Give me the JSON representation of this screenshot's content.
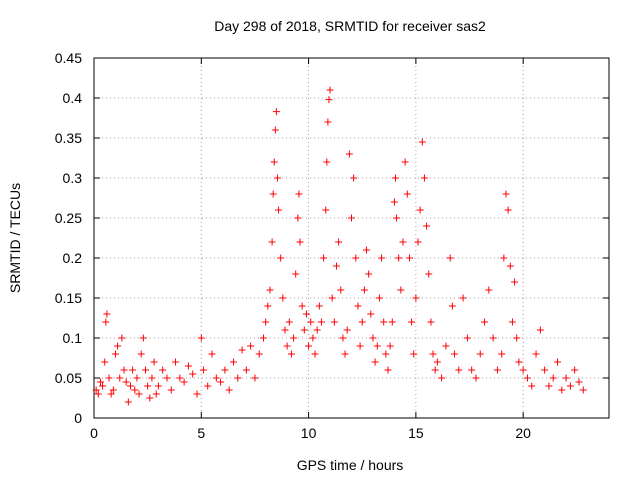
{
  "chart_data": {
    "type": "scatter",
    "title": "Day 298 of 2018, SRMTID for receiver sas2",
    "xlabel": "GPS time / hours",
    "ylabel": "SRMTID / TECUs",
    "xlim": [
      0,
      24
    ],
    "ylim": [
      0,
      0.45
    ],
    "xticks": [
      0,
      5,
      10,
      15,
      20
    ],
    "xtick_labels": [
      "0",
      "5",
      "10",
      "15",
      "20"
    ],
    "yticks": [
      0,
      0.05,
      0.1,
      0.15,
      0.2,
      0.25,
      0.3,
      0.35,
      0.4,
      0.45
    ],
    "ytick_labels": [
      "0",
      "0.05",
      "0.1",
      "0.15",
      "0.2",
      "0.25",
      "0.3",
      "0.35",
      "0.4",
      "0.45"
    ],
    "grid": true,
    "marker": "plus",
    "series": [
      {
        "name": "SRMTID",
        "color": "#ff0000",
        "points": [
          [
            0.1,
            0.035
          ],
          [
            0.2,
            0.03
          ],
          [
            0.3,
            0.045
          ],
          [
            0.4,
            0.04
          ],
          [
            0.5,
            0.07
          ],
          [
            0.55,
            0.12
          ],
          [
            0.6,
            0.13
          ],
          [
            0.7,
            0.05
          ],
          [
            0.8,
            0.03
          ],
          [
            0.9,
            0.035
          ],
          [
            1.0,
            0.08
          ],
          [
            1.1,
            0.09
          ],
          [
            1.2,
            0.05
          ],
          [
            1.3,
            0.1
          ],
          [
            1.4,
            0.06
          ],
          [
            1.5,
            0.045
          ],
          [
            1.6,
            0.02
          ],
          [
            1.7,
            0.04
          ],
          [
            1.8,
            0.06
          ],
          [
            1.9,
            0.035
          ],
          [
            2.0,
            0.05
          ],
          [
            2.1,
            0.03
          ],
          [
            2.2,
            0.08
          ],
          [
            2.3,
            0.1
          ],
          [
            2.4,
            0.06
          ],
          [
            2.5,
            0.04
          ],
          [
            2.6,
            0.025
          ],
          [
            2.7,
            0.05
          ],
          [
            2.8,
            0.07
          ],
          [
            2.9,
            0.03
          ],
          [
            3.0,
            0.04
          ],
          [
            3.2,
            0.06
          ],
          [
            3.4,
            0.05
          ],
          [
            3.6,
            0.035
          ],
          [
            3.8,
            0.07
          ],
          [
            4.0,
            0.05
          ],
          [
            4.2,
            0.045
          ],
          [
            4.4,
            0.065
          ],
          [
            4.6,
            0.055
          ],
          [
            4.8,
            0.03
          ],
          [
            5.0,
            0.1
          ],
          [
            5.1,
            0.06
          ],
          [
            5.3,
            0.04
          ],
          [
            5.5,
            0.08
          ],
          [
            5.7,
            0.05
          ],
          [
            5.9,
            0.045
          ],
          [
            6.1,
            0.06
          ],
          [
            6.3,
            0.035
          ],
          [
            6.5,
            0.07
          ],
          [
            6.7,
            0.05
          ],
          [
            6.9,
            0.085
          ],
          [
            7.1,
            0.06
          ],
          [
            7.3,
            0.09
          ],
          [
            7.5,
            0.05
          ],
          [
            7.7,
            0.08
          ],
          [
            7.9,
            0.1
          ],
          [
            8.0,
            0.12
          ],
          [
            8.1,
            0.14
          ],
          [
            8.2,
            0.16
          ],
          [
            8.3,
            0.22
          ],
          [
            8.35,
            0.28
          ],
          [
            8.4,
            0.32
          ],
          [
            8.45,
            0.36
          ],
          [
            8.5,
            0.383
          ],
          [
            8.55,
            0.3
          ],
          [
            8.6,
            0.26
          ],
          [
            8.7,
            0.2
          ],
          [
            8.8,
            0.15
          ],
          [
            8.9,
            0.11
          ],
          [
            9.0,
            0.09
          ],
          [
            9.1,
            0.12
          ],
          [
            9.2,
            0.08
          ],
          [
            9.3,
            0.1
          ],
          [
            9.4,
            0.18
          ],
          [
            9.5,
            0.25
          ],
          [
            9.55,
            0.28
          ],
          [
            9.6,
            0.22
          ],
          [
            9.7,
            0.14
          ],
          [
            9.8,
            0.11
          ],
          [
            9.9,
            0.13
          ],
          [
            10.0,
            0.09
          ],
          [
            10.1,
            0.12
          ],
          [
            10.2,
            0.1
          ],
          [
            10.3,
            0.08
          ],
          [
            10.4,
            0.11
          ],
          [
            10.5,
            0.14
          ],
          [
            10.6,
            0.12
          ],
          [
            10.7,
            0.2
          ],
          [
            10.8,
            0.26
          ],
          [
            10.85,
            0.32
          ],
          [
            10.9,
            0.37
          ],
          [
            10.95,
            0.398
          ],
          [
            11.0,
            0.41
          ],
          [
            11.1,
            0.15
          ],
          [
            11.2,
            0.12
          ],
          [
            11.3,
            0.19
          ],
          [
            11.4,
            0.22
          ],
          [
            11.5,
            0.16
          ],
          [
            11.6,
            0.1
          ],
          [
            11.7,
            0.08
          ],
          [
            11.8,
            0.11
          ],
          [
            11.9,
            0.33
          ],
          [
            12.0,
            0.25
          ],
          [
            12.1,
            0.3
          ],
          [
            12.2,
            0.2
          ],
          [
            12.3,
            0.14
          ],
          [
            12.4,
            0.09
          ],
          [
            12.5,
            0.12
          ],
          [
            12.6,
            0.16
          ],
          [
            12.7,
            0.21
          ],
          [
            12.8,
            0.18
          ],
          [
            12.9,
            0.13
          ],
          [
            13.0,
            0.1
          ],
          [
            13.1,
            0.07
          ],
          [
            13.2,
            0.09
          ],
          [
            13.3,
            0.15
          ],
          [
            13.4,
            0.2
          ],
          [
            13.5,
            0.12
          ],
          [
            13.6,
            0.08
          ],
          [
            13.7,
            0.06
          ],
          [
            13.8,
            0.09
          ],
          [
            13.9,
            0.12
          ],
          [
            14.0,
            0.27
          ],
          [
            14.05,
            0.3
          ],
          [
            14.1,
            0.25
          ],
          [
            14.2,
            0.2
          ],
          [
            14.3,
            0.16
          ],
          [
            14.4,
            0.22
          ],
          [
            14.5,
            0.32
          ],
          [
            14.6,
            0.28
          ],
          [
            14.7,
            0.2
          ],
          [
            14.8,
            0.12
          ],
          [
            14.9,
            0.08
          ],
          [
            15.0,
            0.15
          ],
          [
            15.1,
            0.22
          ],
          [
            15.2,
            0.26
          ],
          [
            15.3,
            0.345
          ],
          [
            15.4,
            0.3
          ],
          [
            15.5,
            0.24
          ],
          [
            15.6,
            0.18
          ],
          [
            15.7,
            0.12
          ],
          [
            15.8,
            0.08
          ],
          [
            15.9,
            0.06
          ],
          [
            16.0,
            0.07
          ],
          [
            16.2,
            0.05
          ],
          [
            16.4,
            0.09
          ],
          [
            16.6,
            0.2
          ],
          [
            16.7,
            0.14
          ],
          [
            16.8,
            0.08
          ],
          [
            17.0,
            0.06
          ],
          [
            17.2,
            0.15
          ],
          [
            17.4,
            0.1
          ],
          [
            17.6,
            0.06
          ],
          [
            17.8,
            0.05
          ],
          [
            18.0,
            0.08
          ],
          [
            18.2,
            0.12
          ],
          [
            18.4,
            0.16
          ],
          [
            18.6,
            0.1
          ],
          [
            18.8,
            0.06
          ],
          [
            19.0,
            0.08
          ],
          [
            19.1,
            0.2
          ],
          [
            19.2,
            0.28
          ],
          [
            19.3,
            0.26
          ],
          [
            19.4,
            0.19
          ],
          [
            19.5,
            0.12
          ],
          [
            19.6,
            0.17
          ],
          [
            19.7,
            0.1
          ],
          [
            19.8,
            0.07
          ],
          [
            20.0,
            0.06
          ],
          [
            20.2,
            0.05
          ],
          [
            20.4,
            0.04
          ],
          [
            20.6,
            0.08
          ],
          [
            20.8,
            0.11
          ],
          [
            21.0,
            0.06
          ],
          [
            21.2,
            0.04
          ],
          [
            21.4,
            0.05
          ],
          [
            21.6,
            0.07
          ],
          [
            21.8,
            0.035
          ],
          [
            22.0,
            0.05
          ],
          [
            22.2,
            0.04
          ],
          [
            22.4,
            0.06
          ],
          [
            22.6,
            0.045
          ],
          [
            22.8,
            0.035
          ]
        ]
      }
    ]
  }
}
